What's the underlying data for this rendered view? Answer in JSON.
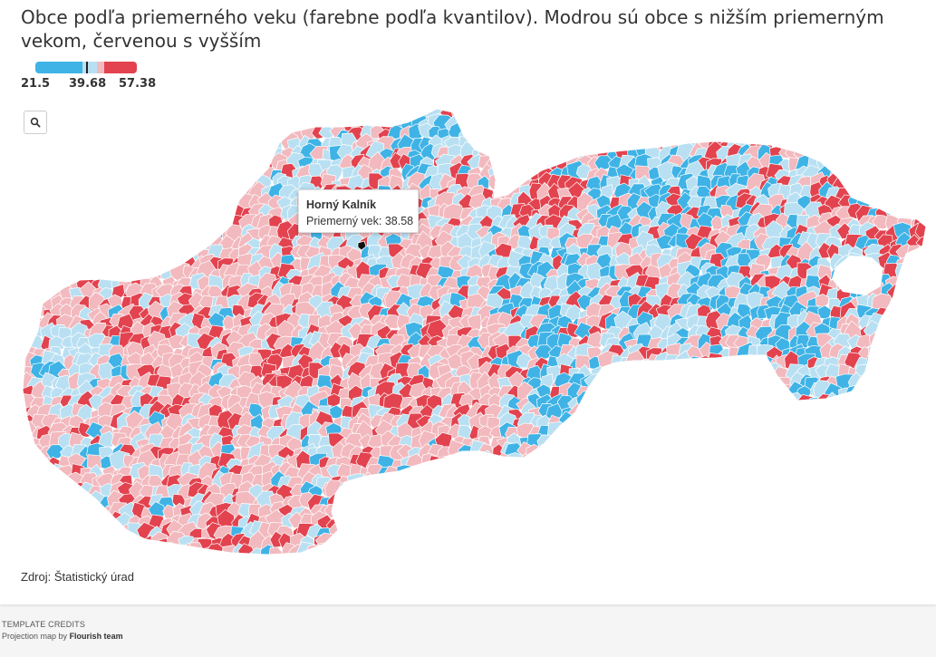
{
  "header": {
    "title": "Obce podľa priemerného veku (farebne podľa kvantilov). Modrou sú obce s nižším priemerným vekom, červenou s vyšším"
  },
  "legend": {
    "min_label": "21.5",
    "mid_label": "39.68",
    "max_label": "57.38",
    "colors": {
      "low": "#3fb3e6",
      "low_light": "#b9e0f2",
      "high_light": "#f2b9be",
      "high": "#e2434f",
      "marker": "#222222"
    }
  },
  "controls": {
    "zoom_icon": "search-icon"
  },
  "tooltip": {
    "name": "Horný Kalník",
    "label": "Priemerný vek: 38.58"
  },
  "map": {
    "palette": [
      "#3fb3e6",
      "#b9e0f2",
      "#f2b9be",
      "#e2434f"
    ],
    "stroke": "#ffffff"
  },
  "footer": {
    "source": "Zdroj: Štatistický úrad",
    "credits_heading": "TEMPLATE CREDITS",
    "credits_prefix": "Projection map by",
    "credits_author": "Flourish team"
  }
}
